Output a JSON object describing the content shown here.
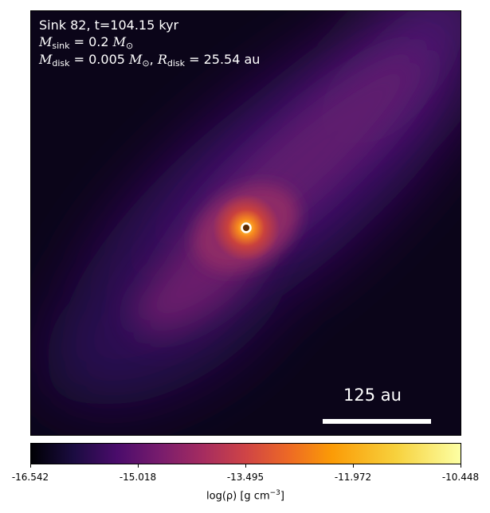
{
  "title_line": "Sink 82, t=104.15 kyr",
  "sink_mass": {
    "symbol": "M",
    "subscript": "sink",
    "value": "= 0.2",
    "unit": "M",
    "unit_subscript": "⊙"
  },
  "disk": {
    "mass_symbol": "M",
    "mass_subscript": "disk",
    "mass_value": "= 0.005",
    "mass_unit": "M",
    "mass_unit_subscript": "⊙",
    "separator": ",",
    "radius_symbol": "R",
    "radius_subscript": "disk",
    "radius_value": "= 25.54 au"
  },
  "scale_bar_label": "125 au",
  "colorbar": {
    "ticks": [
      "-16.542",
      "-15.018",
      "-13.495",
      "-11.972",
      "-10.448"
    ],
    "label_main": "log(ρ) [g cm",
    "label_exp": "−3",
    "label_end": "]",
    "colormap": "inferno",
    "range": [
      -16.542,
      -10.448
    ]
  },
  "colors": {
    "sink_marker_ring": "#ffffff",
    "sink_marker_core": "#5a2a06"
  }
}
